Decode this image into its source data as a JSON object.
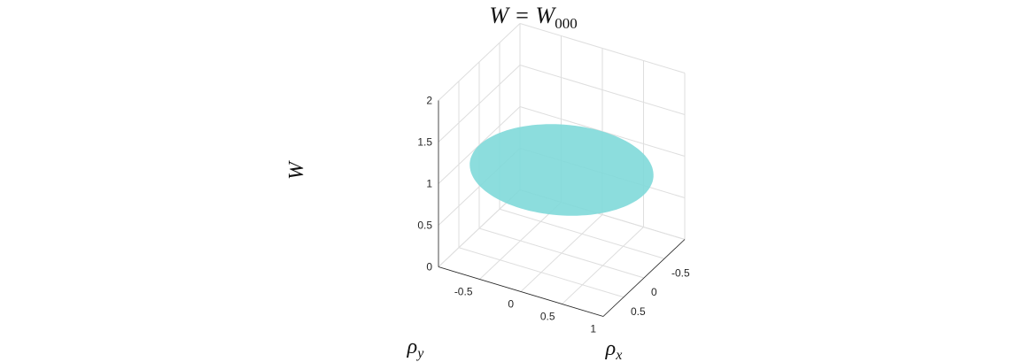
{
  "chart_data": {
    "type": "surface3d",
    "title": {
      "base": "W = W",
      "subscript": "000"
    },
    "xlabel": {
      "base": "ρ",
      "subscript": "x"
    },
    "ylabel": {
      "base": "ρ",
      "subscript": "y"
    },
    "zlabel": "W",
    "xlim": [
      -1,
      1
    ],
    "ylim": [
      -1,
      1
    ],
    "zlim": [
      0,
      2
    ],
    "xticks": [
      -0.5,
      0,
      0.5,
      1
    ],
    "yticks": [
      -0.5,
      0,
      0.5
    ],
    "zticks": [
      0,
      0.5,
      1,
      1.5,
      2
    ],
    "xticklabels": [
      "-0.5",
      "0",
      "0.5",
      "1"
    ],
    "yticklabels": [
      "-0.5",
      "0",
      "0.5"
    ],
    "zticklabels": [
      "0",
      "0.5",
      "1",
      "1.5",
      "2"
    ],
    "grid": true,
    "surface": {
      "shape": "unit disk",
      "radius": 1,
      "z_value": 1,
      "color": "#7fd9d9",
      "alpha": 0.9
    }
  }
}
